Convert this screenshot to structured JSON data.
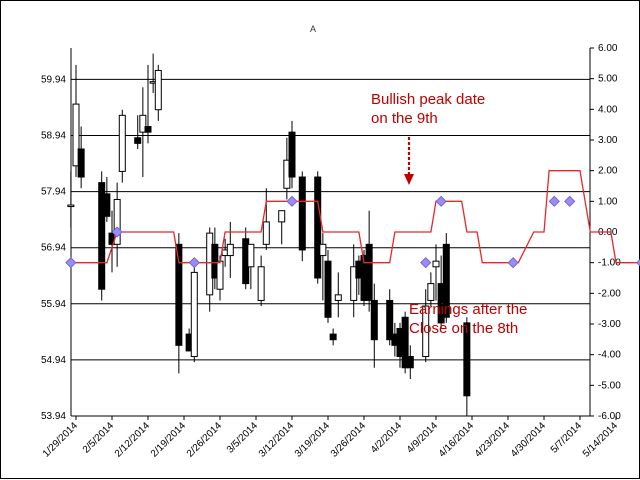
{
  "chart_data": {
    "type": "candlestick",
    "title": "A",
    "x_tick_labels": [
      "1/29/2014",
      "2/5/2014",
      "2/12/2014",
      "2/19/2014",
      "2/26/2014",
      "3/5/2014",
      "3/12/2014",
      "3/19/2014",
      "3/26/2014",
      "4/2/2014",
      "4/9/2014",
      "4/16/2014",
      "4/23/2014",
      "4/30/2014",
      "5/7/2014",
      "5/14/2014"
    ],
    "y_left": {
      "ticks": [
        "53.94",
        "54.94",
        "55.94",
        "56.94",
        "57.94",
        "58.94",
        "59.94"
      ],
      "range": [
        53.94,
        60.5
      ]
    },
    "y_right": {
      "ticks": [
        "-6.00",
        "-5.00",
        "-4.00",
        "-3.00",
        "-2.00",
        "-1.00",
        "0.00",
        "1.00",
        "2.00",
        "3.00",
        "4.00",
        "5.00",
        "6.00"
      ],
      "range": [
        -6,
        6
      ]
    },
    "grid": "horizontal at left-axis ticks",
    "candles": [
      {
        "date": "1/28/2014",
        "open": 57.7,
        "high": 58.3,
        "low": 57.3,
        "close": 57.7
      },
      {
        "date": "1/29/2014",
        "open": 58.4,
        "high": 60.2,
        "low": 58.2,
        "close": 59.5
      },
      {
        "date": "1/30/2014",
        "open": 58.7,
        "high": 59.1,
        "low": 58.0,
        "close": 58.2
      },
      {
        "date": "2/3/2014",
        "open": 58.1,
        "high": 58.3,
        "low": 56.0,
        "close": 56.2
      },
      {
        "date": "2/4/2014",
        "open": 57.9,
        "high": 58.2,
        "low": 57.4,
        "close": 57.5
      },
      {
        "date": "2/5/2014",
        "open": 57.2,
        "high": 57.6,
        "low": 56.5,
        "close": 57.0
      },
      {
        "date": "2/6/2014",
        "open": 57.0,
        "high": 58.1,
        "low": 56.6,
        "close": 57.8
      },
      {
        "date": "2/7/2014",
        "open": 58.3,
        "high": 59.4,
        "low": 58.1,
        "close": 59.3
      },
      {
        "date": "2/10/2014",
        "open": 58.9,
        "high": 59.3,
        "low": 58.7,
        "close": 58.8
      },
      {
        "date": "2/11/2014",
        "open": 59.0,
        "high": 59.8,
        "low": 58.2,
        "close": 59.3
      },
      {
        "date": "2/12/2014",
        "open": 59.1,
        "high": 60.2,
        "low": 58.8,
        "close": 59.0
      },
      {
        "date": "2/13/2014",
        "open": 59.9,
        "high": 60.4,
        "low": 59.7,
        "close": 59.9
      },
      {
        "date": "2/14/2014",
        "open": 59.4,
        "high": 60.2,
        "low": 59.2,
        "close": 60.1
      },
      {
        "date": "2/18/2014",
        "open": 57.0,
        "high": 57.2,
        "low": 54.7,
        "close": 55.2
      },
      {
        "date": "2/20/2014",
        "open": 55.4,
        "high": 55.5,
        "low": 55.1,
        "close": 55.1
      },
      {
        "date": "2/21/2014",
        "open": 55.0,
        "high": 56.7,
        "low": 54.9,
        "close": 56.5
      },
      {
        "date": "2/24/2014",
        "open": 56.1,
        "high": 57.3,
        "low": 55.8,
        "close": 57.2
      },
      {
        "date": "2/25/2014",
        "open": 57.0,
        "high": 57.3,
        "low": 56.2,
        "close": 56.4
      },
      {
        "date": "2/26/2014",
        "open": 56.2,
        "high": 56.8,
        "low": 56.0,
        "close": 56.7
      },
      {
        "date": "2/27/2014",
        "open": 56.8,
        "high": 57.1,
        "low": 56.6,
        "close": 56.9
      },
      {
        "date": "2/28/2014",
        "open": 56.8,
        "high": 57.4,
        "low": 56.4,
        "close": 57.0
      },
      {
        "date": "3/3/2014",
        "open": 57.1,
        "high": 57.3,
        "low": 56.2,
        "close": 56.3
      },
      {
        "date": "3/4/2014",
        "open": 56.6,
        "high": 57.0,
        "low": 56.2,
        "close": 57.0
      },
      {
        "date": "3/6/2014",
        "open": 56.0,
        "high": 56.8,
        "low": 55.9,
        "close": 56.6
      },
      {
        "date": "3/7/2014",
        "open": 57.0,
        "high": 58.0,
        "low": 56.9,
        "close": 57.4
      },
      {
        "date": "3/10/2014",
        "open": 57.4,
        "high": 57.6,
        "low": 57.0,
        "close": 57.6
      },
      {
        "date": "3/11/2014",
        "open": 58.0,
        "high": 58.9,
        "low": 57.8,
        "close": 58.5
      },
      {
        "date": "3/12/2014",
        "open": 59.0,
        "high": 59.2,
        "low": 58.0,
        "close": 58.2
      },
      {
        "date": "3/14/2014",
        "open": 58.2,
        "high": 58.3,
        "low": 56.7,
        "close": 56.9
      },
      {
        "date": "3/17/2014",
        "open": 58.2,
        "high": 58.3,
        "low": 56.3,
        "close": 56.4
      },
      {
        "date": "3/18/2014",
        "open": 56.8,
        "high": 57.2,
        "low": 56.0,
        "close": 57.0
      },
      {
        "date": "3/19/2014",
        "open": 56.7,
        "high": 56.9,
        "low": 55.6,
        "close": 55.7
      },
      {
        "date": "3/20/2014",
        "open": 55.4,
        "high": 55.5,
        "low": 55.2,
        "close": 55.3
      },
      {
        "date": "3/21/2014",
        "open": 56.0,
        "high": 56.5,
        "low": 55.7,
        "close": 56.1
      },
      {
        "date": "3/24/2014",
        "open": 56.0,
        "high": 57.0,
        "low": 55.7,
        "close": 56.6
      },
      {
        "date": "3/25/2014",
        "open": 56.7,
        "high": 56.8,
        "low": 56.1,
        "close": 56.4
      },
      {
        "date": "3/26/2014",
        "open": 56.8,
        "high": 56.9,
        "low": 55.9,
        "close": 56.0
      },
      {
        "date": "3/27/2014",
        "open": 57.0,
        "high": 57.6,
        "low": 55.8,
        "close": 56.0
      },
      {
        "date": "3/28/2014",
        "open": 56.0,
        "high": 56.3,
        "low": 54.8,
        "close": 55.3
      },
      {
        "date": "3/31/2014",
        "open": 56.0,
        "high": 56.2,
        "low": 55.2,
        "close": 55.3
      },
      {
        "date": "4/1/2014",
        "open": 55.4,
        "high": 55.6,
        "low": 55.0,
        "close": 55.2
      },
      {
        "date": "4/2/2014",
        "open": 55.5,
        "high": 55.6,
        "low": 54.8,
        "close": 55.0
      },
      {
        "date": "4/3/2014",
        "open": 55.7,
        "high": 55.8,
        "low": 54.7,
        "close": 54.8
      },
      {
        "date": "4/4/2014",
        "open": 55.0,
        "high": 55.2,
        "low": 54.6,
        "close": 54.8
      },
      {
        "date": "4/7/2014",
        "open": 55.0,
        "high": 56.2,
        "low": 54.9,
        "close": 55.9
      },
      {
        "date": "4/8/2014",
        "open": 56.0,
        "high": 56.5,
        "low": 55.9,
        "close": 56.3
      },
      {
        "date": "4/9/2014",
        "open": 56.6,
        "high": 57.0,
        "low": 56.0,
        "close": 56.7
      },
      {
        "date": "4/10/2014",
        "open": 56.3,
        "high": 56.8,
        "low": 55.5,
        "close": 55.6
      },
      {
        "date": "4/11/2014",
        "open": 57.0,
        "high": 57.2,
        "low": 55.6,
        "close": 55.7
      },
      {
        "date": "4/15/2014",
        "open": 55.6,
        "high": 55.7,
        "low": 53.94,
        "close": 54.3
      }
    ],
    "signal_series": {
      "color": "#e8262b",
      "axis": "right",
      "points": [
        {
          "x": "1/28/2014",
          "y": -1
        },
        {
          "x": "2/4/2014",
          "y": -1
        },
        {
          "x": "2/6/2014",
          "y": 0
        },
        {
          "x": "2/17/2014",
          "y": 0
        },
        {
          "x": "2/18/2014",
          "y": -1
        },
        {
          "x": "2/26/2014",
          "y": -1
        },
        {
          "x": "2/27/2014",
          "y": 0
        },
        {
          "x": "3/6/2014",
          "y": 0
        },
        {
          "x": "3/7/2014",
          "y": 1
        },
        {
          "x": "3/17/2014",
          "y": 1
        },
        {
          "x": "3/18/2014",
          "y": 0
        },
        {
          "x": "3/25/2014",
          "y": 0
        },
        {
          "x": "3/26/2014",
          "y": -1
        },
        {
          "x": "3/31/2014",
          "y": -1
        },
        {
          "x": "4/1/2014",
          "y": 0
        },
        {
          "x": "4/8/2014",
          "y": 0
        },
        {
          "x": "4/9/2014",
          "y": 1
        },
        {
          "x": "4/14/2014",
          "y": 1
        },
        {
          "x": "4/15/2014",
          "y": 0
        },
        {
          "x": "4/17/2014",
          "y": 0
        },
        {
          "x": "4/18/2014",
          "y": -1
        },
        {
          "x": "4/25/2014",
          "y": -1
        },
        {
          "x": "4/28/2014",
          "y": 0
        },
        {
          "x": "4/30/2014",
          "y": 0
        },
        {
          "x": "5/1/2014",
          "y": 2
        },
        {
          "x": "5/7/2014",
          "y": 2
        },
        {
          "x": "5/8/2014",
          "y": 1
        },
        {
          "x": "5/9/2014",
          "y": 0
        },
        {
          "x": "5/13/2014",
          "y": 0
        },
        {
          "x": "5/14/2014",
          "y": -1
        },
        {
          "x": "5/19/2014",
          "y": -1
        }
      ]
    },
    "markers": {
      "color": "#9a8cf2",
      "axis": "right",
      "points": [
        {
          "x": "1/28/2014",
          "y": -1
        },
        {
          "x": "2/6/2014",
          "y": 0
        },
        {
          "x": "2/21/2014",
          "y": -1
        },
        {
          "x": "3/12/2014",
          "y": 1
        },
        {
          "x": "4/7/2014",
          "y": -1
        },
        {
          "x": "4/10/2014",
          "y": 1
        },
        {
          "x": "4/24/2014",
          "y": -1
        },
        {
          "x": "5/2/2014",
          "y": 1
        },
        {
          "x": "5/5/2014",
          "y": 1
        },
        {
          "x": "5/19/2014",
          "y": -1
        }
      ]
    },
    "annotations": [
      {
        "lines": [
          "Bullish peak date",
          "on the 9th"
        ],
        "color": "#c00000"
      },
      {
        "lines": [
          "Earnings after the",
          "Close on the 8th"
        ],
        "color": "#c00000"
      }
    ]
  }
}
